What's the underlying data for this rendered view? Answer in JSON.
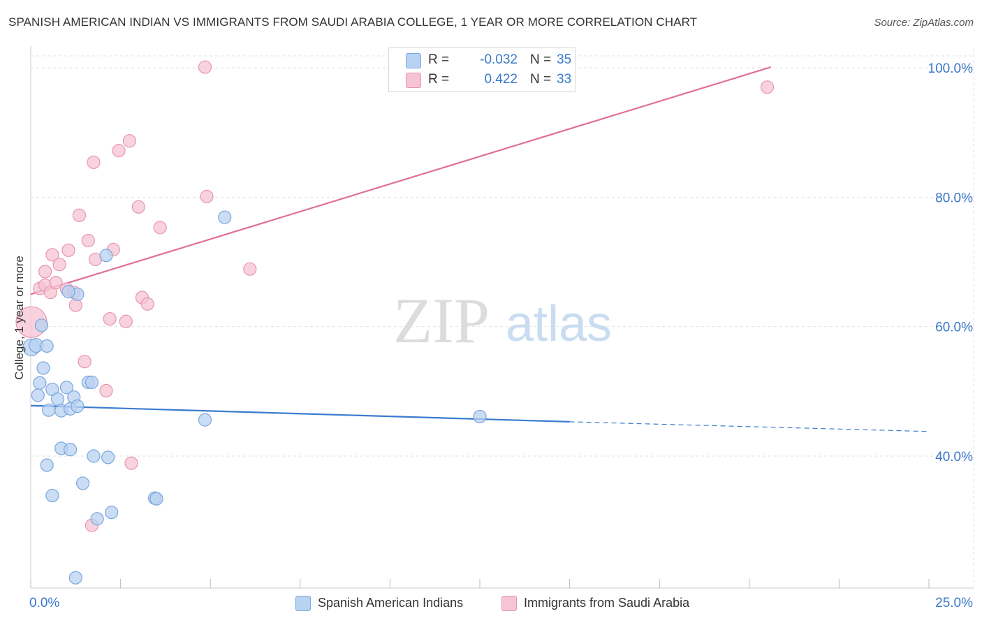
{
  "title": "SPANISH AMERICAN INDIAN VS IMMIGRANTS FROM SAUDI ARABIA COLLEGE, 1 YEAR OR MORE CORRELATION CHART",
  "source": "Source: ZipAtlas.com",
  "watermark": {
    "zip": "ZIP",
    "atlas": "atlas"
  },
  "colors": {
    "blue_fill": "#b8d2f2",
    "blue_stroke": "#7aa7dc",
    "blue_line": "#3a7bd0",
    "pink_fill": "#f6c4d3",
    "pink_stroke": "#e795b0",
    "pink_line": "#e06f96",
    "axis_text": "#3a78c9",
    "grid": "#e2e2e2"
  },
  "legend": {
    "rows": [
      {
        "r_label": "R =",
        "r_value": "-0.032",
        "n_label": "N =",
        "n_value": "35"
      },
      {
        "r_label": "R =",
        "r_value": "0.422",
        "n_label": "N =",
        "n_value": "33"
      }
    ]
  },
  "chart_data": {
    "type": "scatter",
    "title": "SPANISH AMERICAN INDIAN VS IMMIGRANTS FROM SAUDI ARABIA COLLEGE, 1 YEAR OR MORE CORRELATION CHART",
    "xlabel": "",
    "ylabel": "College, 1 year or more",
    "xlim": [
      0,
      25
    ],
    "ylim": [
      20,
      102
    ],
    "x_tick_labels": [
      "0.0%",
      "25.0%"
    ],
    "y_ticks": [
      40,
      60,
      80,
      100
    ],
    "y_tick_labels": [
      "40.0%",
      "60.0%",
      "80.0%",
      "100.0%"
    ],
    "grid": true,
    "legend_position": "top-center",
    "series": [
      {
        "name": "Spanish American Indians",
        "color": "blue",
        "points": [
          [
            0.02,
            56.8,
            12
          ],
          [
            0.15,
            57.1,
            10
          ],
          [
            0.3,
            60.2,
            9
          ],
          [
            0.45,
            57.0,
            9
          ],
          [
            0.2,
            49.4,
            9
          ],
          [
            0.25,
            51.3,
            9
          ],
          [
            0.35,
            53.6,
            9
          ],
          [
            0.5,
            47.1,
            9
          ],
          [
            0.6,
            50.3,
            9
          ],
          [
            0.75,
            48.8,
            9
          ],
          [
            0.85,
            47.0,
            9
          ],
          [
            1.0,
            50.6,
            9
          ],
          [
            1.1,
            47.3,
            9
          ],
          [
            1.2,
            49.1,
            9
          ],
          [
            1.3,
            47.7,
            9
          ],
          [
            1.6,
            51.4,
            9
          ],
          [
            1.7,
            51.4,
            9
          ],
          [
            1.3,
            65.0,
            9
          ],
          [
            1.05,
            65.4,
            9
          ],
          [
            2.1,
            71.0,
            9
          ],
          [
            5.4,
            76.9,
            9
          ],
          [
            0.45,
            38.6,
            9
          ],
          [
            0.85,
            41.2,
            9
          ],
          [
            1.1,
            41.0,
            9
          ],
          [
            1.75,
            40.0,
            9
          ],
          [
            2.15,
            39.8,
            9
          ],
          [
            1.45,
            35.8,
            9
          ],
          [
            0.6,
            33.9,
            9
          ],
          [
            2.25,
            31.3,
            9
          ],
          [
            1.85,
            30.3,
            9
          ],
          [
            3.45,
            33.5,
            9
          ],
          [
            3.5,
            33.4,
            9
          ],
          [
            4.85,
            45.6,
            9
          ],
          [
            12.5,
            46.1,
            9
          ],
          [
            1.25,
            21.2,
            9
          ]
        ],
        "trend": {
          "x": [
            0,
            15
          ],
          "y": [
            47.8,
            45.3
          ],
          "dashed_to": [
            25,
            43.8
          ]
        }
      },
      {
        "name": "Immigrants from Saudi Arabia",
        "color": "pink",
        "points": [
          [
            0.02,
            60.7,
            22
          ],
          [
            0.25,
            65.9,
            9
          ],
          [
            0.4,
            66.4,
            9
          ],
          [
            0.4,
            68.5,
            9
          ],
          [
            0.55,
            65.3,
            9
          ],
          [
            0.6,
            71.1,
            9
          ],
          [
            0.8,
            69.6,
            9
          ],
          [
            0.7,
            66.8,
            9
          ],
          [
            1.0,
            65.8,
            9
          ],
          [
            1.05,
            71.8,
            9
          ],
          [
            1.2,
            65.3,
            9
          ],
          [
            1.25,
            63.3,
            9
          ],
          [
            1.35,
            77.2,
            9
          ],
          [
            1.6,
            73.3,
            9
          ],
          [
            1.8,
            70.4,
            9
          ],
          [
            2.3,
            71.9,
            9
          ],
          [
            1.75,
            85.4,
            9
          ],
          [
            2.45,
            87.2,
            9
          ],
          [
            2.75,
            88.7,
            9
          ],
          [
            3.0,
            78.5,
            9
          ],
          [
            3.6,
            75.3,
            9
          ],
          [
            3.1,
            64.5,
            9
          ],
          [
            3.25,
            63.5,
            9
          ],
          [
            2.2,
            61.2,
            9
          ],
          [
            2.65,
            60.8,
            9
          ],
          [
            1.5,
            54.6,
            9
          ],
          [
            2.1,
            50.1,
            9
          ],
          [
            2.8,
            38.9,
            9
          ],
          [
            1.7,
            29.3,
            9
          ],
          [
            4.85,
            100.1,
            9
          ],
          [
            4.9,
            80.1,
            9
          ],
          [
            6.1,
            68.9,
            9
          ],
          [
            20.5,
            97.0,
            9
          ]
        ],
        "trend": {
          "x": [
            0,
            20.6
          ],
          "y": [
            65.0,
            100.1
          ]
        }
      }
    ]
  }
}
